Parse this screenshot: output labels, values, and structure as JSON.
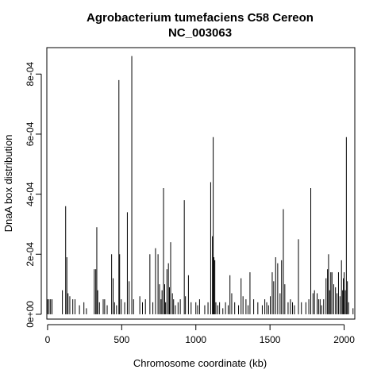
{
  "chart_data": {
    "type": "bar",
    "title": "Agrobacterium tumefaciens C58 Cereon",
    "subtitle": "NC_003063",
    "xlabel": "Chromosome coordinate (kb)",
    "ylabel": "DnaA box distribution",
    "xlim": [
      -5,
      2072
    ],
    "ylim": [
      -1.6e-05,
      0.000888
    ],
    "x_ticks": [
      0,
      500,
      1000,
      1500,
      2000
    ],
    "x_tick_labels": [
      "0",
      "500",
      "1000",
      "1500",
      "2000"
    ],
    "y_ticks": [
      0,
      0.0002,
      0.0004,
      0.0006,
      0.0008
    ],
    "y_tick_labels": [
      "0e+00",
      "2e-04",
      "4e-04",
      "6e-04",
      "8e-04"
    ],
    "grid": false,
    "legend": "none",
    "color": "#000000",
    "x": [
      0,
      10,
      20,
      30,
      100,
      122,
      130,
      138,
      150,
      170,
      185,
      215,
      245,
      262,
      315,
      325,
      332,
      338,
      350,
      375,
      385,
      402,
      432,
      442,
      452,
      465,
      481,
      486,
      497,
      520,
      538,
      550,
      568,
      580,
      622,
      640,
      660,
      690,
      710,
      728,
      745,
      755,
      765,
      772,
      782,
      790,
      796,
      805,
      815,
      822,
      830,
      842,
      850,
      862,
      880,
      895,
      922,
      930,
      950,
      968,
      1000,
      1012,
      1025,
      1060,
      1082,
      1100,
      1112,
      1117,
      1122,
      1128,
      1135,
      1148,
      1160,
      1182,
      1200,
      1218,
      1230,
      1242,
      1262,
      1288,
      1305,
      1318,
      1338,
      1352,
      1365,
      1390,
      1418,
      1448,
      1465,
      1478,
      1490,
      1502,
      1515,
      1525,
      1538,
      1552,
      1568,
      1578,
      1590,
      1600,
      1622,
      1638,
      1652,
      1665,
      1692,
      1712,
      1742,
      1762,
      1775,
      1790,
      1800,
      1818,
      1828,
      1838,
      1848,
      1862,
      1878,
      1888,
      1895,
      1902,
      1910,
      1918,
      1930,
      1942,
      1952,
      1962,
      1972,
      1982,
      1990,
      1995,
      2000,
      2008,
      2015,
      2022,
      2030,
      2060
    ],
    "values": [
      5e-05,
      5e-05,
      5e-05,
      5e-05,
      8e-05,
      0.00036,
      0.00019,
      7e-05,
      6e-05,
      5e-05,
      5e-05,
      3e-05,
      4e-05,
      2e-05,
      0.00015,
      0.00015,
      0.00029,
      8e-05,
      4e-05,
      5e-05,
      5e-05,
      3e-05,
      0.0002,
      0.00012,
      4e-05,
      3e-05,
      0.00078,
      0.0002,
      5e-05,
      4e-05,
      0.00034,
      0.00011,
      0.00086,
      5e-05,
      6e-05,
      4e-05,
      5e-05,
      0.0002,
      4e-05,
      0.00022,
      0.0002,
      0.0001,
      5e-05,
      8e-05,
      0.00042,
      0.0001,
      4e-05,
      0.00015,
      0.00017,
      9e-05,
      0.00024,
      7e-05,
      5e-05,
      3e-05,
      4e-05,
      5e-05,
      0.00038,
      6e-05,
      0.00013,
      4e-05,
      4e-05,
      3e-05,
      5e-05,
      3e-05,
      4e-05,
      0.00044,
      0.00026,
      0.00059,
      0.00019,
      0.00018,
      4e-05,
      3e-05,
      4e-05,
      2e-05,
      4e-05,
      3e-05,
      0.00013,
      7e-05,
      4e-05,
      3e-05,
      0.00012,
      6e-05,
      5e-05,
      3e-05,
      0.00014,
      5e-05,
      4e-05,
      3e-05,
      5e-05,
      4e-05,
      3e-05,
      6e-05,
      0.00014,
      0.00011,
      0.00019,
      0.00017,
      7e-05,
      0.00018,
      0.00035,
      0.0001,
      4e-05,
      5e-05,
      4e-05,
      3e-05,
      0.00025,
      4e-05,
      4e-05,
      5e-05,
      0.00042,
      7e-05,
      8e-05,
      7e-05,
      5e-05,
      5e-05,
      3e-05,
      5e-05,
      0.00012,
      0.00015,
      0.0002,
      8e-05,
      0.00014,
      0.00014,
      0.0001,
      9e-05,
      7e-05,
      0.00014,
      6e-05,
      0.00018,
      8e-05,
      0.00012,
      0.00014,
      8e-05,
      0.00059,
      0.00011,
      4e-05,
      2e-05
    ]
  }
}
